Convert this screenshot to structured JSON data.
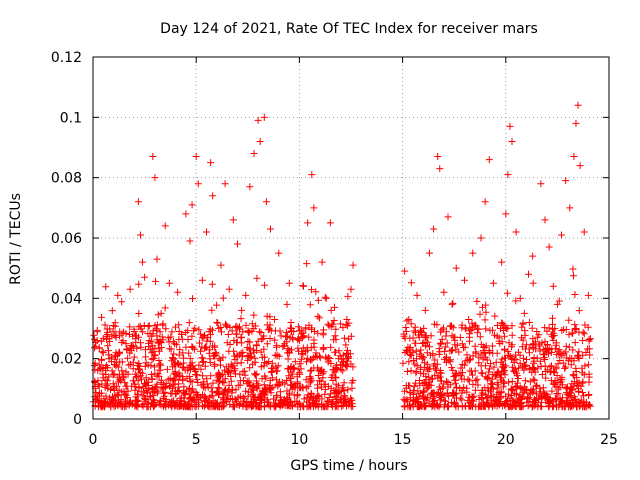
{
  "chart_data": {
    "type": "scatter",
    "title": "Day 124 of 2021, Rate Of TEC Index for receiver mars",
    "xlabel": "GPS time / hours",
    "ylabel": "ROTI / TECUs",
    "xlim": [
      0,
      25
    ],
    "ylim": [
      0,
      0.12
    ],
    "xticks": [
      0,
      5,
      10,
      15,
      20,
      25
    ],
    "xtick_labels": [
      "0",
      "5",
      "10",
      "15",
      "20",
      "25"
    ],
    "yticks": [
      0,
      0.02,
      0.04,
      0.06,
      0.08,
      0.1,
      0.12
    ],
    "ytick_labels": [
      "0",
      "0.02",
      "0.04",
      "0.06",
      "0.08",
      "0.1",
      "0.12"
    ],
    "grid": true,
    "marker": "+",
    "color": "#ff0000",
    "data_gap_hours": [
      12.6,
      15.0
    ],
    "series": [
      {
        "name": "ROTI",
        "points": [
          [
            0.1,
            0.012
          ],
          [
            0.3,
            0.018
          ],
          [
            0.5,
            0.022
          ],
          [
            0.7,
            0.028
          ],
          [
            0.9,
            0.019
          ],
          [
            1.0,
            0.031
          ],
          [
            1.2,
            0.041
          ],
          [
            1.4,
            0.016
          ],
          [
            1.6,
            0.025
          ],
          [
            1.8,
            0.043
          ],
          [
            2.0,
            0.029
          ],
          [
            2.2,
            0.072
          ],
          [
            2.3,
            0.061
          ],
          [
            2.4,
            0.052
          ],
          [
            2.5,
            0.047
          ],
          [
            2.7,
            0.024
          ],
          [
            2.9,
            0.087
          ],
          [
            3.0,
            0.08
          ],
          [
            3.1,
            0.053
          ],
          [
            3.3,
            0.035
          ],
          [
            3.5,
            0.064
          ],
          [
            3.7,
            0.045
          ],
          [
            3.9,
            0.02
          ],
          [
            4.1,
            0.042
          ],
          [
            4.3,
            0.028
          ],
          [
            4.5,
            0.068
          ],
          [
            4.7,
            0.059
          ],
          [
            4.8,
            0.071
          ],
          [
            5.0,
            0.087
          ],
          [
            5.1,
            0.078
          ],
          [
            5.3,
            0.046
          ],
          [
            5.5,
            0.062
          ],
          [
            5.7,
            0.085
          ],
          [
            5.8,
            0.074
          ],
          [
            6.0,
            0.032
          ],
          [
            6.2,
            0.051
          ],
          [
            6.4,
            0.078
          ],
          [
            6.6,
            0.043
          ],
          [
            6.8,
            0.066
          ],
          [
            7.0,
            0.058
          ],
          [
            7.2,
            0.036
          ],
          [
            7.4,
            0.041
          ],
          [
            7.6,
            0.077
          ],
          [
            7.8,
            0.088
          ],
          [
            8.0,
            0.099
          ],
          [
            8.1,
            0.092
          ],
          [
            8.3,
            0.1
          ],
          [
            8.4,
            0.072
          ],
          [
            8.6,
            0.063
          ],
          [
            8.8,
            0.033
          ],
          [
            9.0,
            0.055
          ],
          [
            9.2,
            0.024
          ],
          [
            9.4,
            0.038
          ],
          [
            9.6,
            0.029
          ],
          [
            9.8,
            0.019
          ],
          [
            10.0,
            0.026
          ],
          [
            10.2,
            0.044
          ],
          [
            10.4,
            0.065
          ],
          [
            10.6,
            0.081
          ],
          [
            10.7,
            0.07
          ],
          [
            10.9,
            0.034
          ],
          [
            11.1,
            0.052
          ],
          [
            11.3,
            0.04
          ],
          [
            11.5,
            0.065
          ],
          [
            11.7,
            0.037
          ],
          [
            11.9,
            0.02
          ],
          [
            12.1,
            0.016
          ],
          [
            12.3,
            0.033
          ],
          [
            12.5,
            0.043
          ],
          [
            12.6,
            0.051
          ],
          [
            15.1,
            0.049
          ],
          [
            15.3,
            0.033
          ],
          [
            15.5,
            0.022
          ],
          [
            15.7,
            0.041
          ],
          [
            15.9,
            0.029
          ],
          [
            16.1,
            0.036
          ],
          [
            16.3,
            0.055
          ],
          [
            16.5,
            0.063
          ],
          [
            16.7,
            0.087
          ],
          [
            16.8,
            0.083
          ],
          [
            17.0,
            0.042
          ],
          [
            17.2,
            0.067
          ],
          [
            17.4,
            0.038
          ],
          [
            17.6,
            0.05
          ],
          [
            17.8,
            0.027
          ],
          [
            18.0,
            0.046
          ],
          [
            18.2,
            0.033
          ],
          [
            18.4,
            0.055
          ],
          [
            18.6,
            0.039
          ],
          [
            18.8,
            0.06
          ],
          [
            19.0,
            0.072
          ],
          [
            19.2,
            0.086
          ],
          [
            19.4,
            0.045
          ],
          [
            19.6,
            0.031
          ],
          [
            19.8,
            0.052
          ],
          [
            20.0,
            0.068
          ],
          [
            20.1,
            0.081
          ],
          [
            20.2,
            0.097
          ],
          [
            20.3,
            0.092
          ],
          [
            20.5,
            0.062
          ],
          [
            20.7,
            0.04
          ],
          [
            20.9,
            0.035
          ],
          [
            21.1,
            0.048
          ],
          [
            21.3,
            0.054
          ],
          [
            21.5,
            0.029
          ],
          [
            21.7,
            0.078
          ],
          [
            21.9,
            0.066
          ],
          [
            22.1,
            0.057
          ],
          [
            22.3,
            0.044
          ],
          [
            22.5,
            0.038
          ],
          [
            22.7,
            0.061
          ],
          [
            22.9,
            0.079
          ],
          [
            23.1,
            0.07
          ],
          [
            23.3,
            0.087
          ],
          [
            23.4,
            0.098
          ],
          [
            23.5,
            0.104
          ],
          [
            23.6,
            0.084
          ],
          [
            23.8,
            0.062
          ],
          [
            24.0,
            0.041
          ]
        ]
      }
    ]
  }
}
